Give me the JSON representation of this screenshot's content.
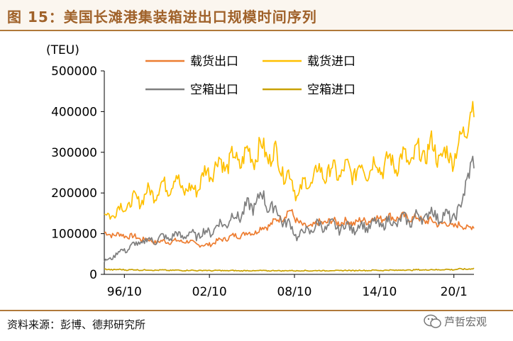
{
  "header": {
    "title": "图 15：美国长滩港集装箱进出口规模时间序列"
  },
  "footer": {
    "source": "资料来源：彭博、德邦研究所",
    "watermark": "芦哲宏观"
  },
  "colors": {
    "title": "#a0622a",
    "rule": "#b0793a",
    "loaded_export": "#ed7d31",
    "loaded_import": "#ffc000",
    "empty_export": "#7f7f7f",
    "empty_import": "#c9a100"
  },
  "chart_data": {
    "type": "line",
    "unit_label": "(TEU)",
    "yticks": [
      "500000",
      "400000",
      "300000",
      "200000",
      "100000",
      "0"
    ],
    "xticks": [
      "96/10",
      "02/10",
      "08/10",
      "14/10",
      "20/1"
    ],
    "ylim": [
      0,
      500000
    ],
    "x_start": "1995-05",
    "x_end": "2021-06",
    "legend_position": "top",
    "series": [
      {
        "name": "载货出口",
        "color": "#ed7d31",
        "anchors": [
          [
            "1995-05",
            100000
          ],
          [
            "1997-01",
            95000
          ],
          [
            "1999-01",
            80000
          ],
          [
            "2001-01",
            82000
          ],
          [
            "2002-06",
            70000
          ],
          [
            "2004-01",
            90000
          ],
          [
            "2006-01",
            105000
          ],
          [
            "2007-06",
            130000
          ],
          [
            "2008-06",
            155000
          ],
          [
            "2009-06",
            115000
          ],
          [
            "2011-01",
            130000
          ],
          [
            "2013-01",
            128000
          ],
          [
            "2015-01",
            140000
          ],
          [
            "2017-01",
            140000
          ],
          [
            "2019-01",
            125000
          ],
          [
            "2021-06",
            115000
          ]
        ]
      },
      {
        "name": "载货进口",
        "color": "#ffc000",
        "anchors": [
          [
            "1995-05",
            140000
          ],
          [
            "1996-06",
            160000
          ],
          [
            "1998-01",
            190000
          ],
          [
            "2000-06",
            230000
          ],
          [
            "2001-06",
            200000
          ],
          [
            "2003-01",
            265000
          ],
          [
            "2005-01",
            285000
          ],
          [
            "2006-06",
            305000
          ],
          [
            "2007-06",
            290000
          ],
          [
            "2009-01",
            200000
          ],
          [
            "2010-06",
            250000
          ],
          [
            "2013-01",
            255000
          ],
          [
            "2015-01",
            270000
          ],
          [
            "2017-01",
            285000
          ],
          [
            "2018-06",
            310000
          ],
          [
            "2019-06",
            285000
          ],
          [
            "2020-06",
            310000
          ],
          [
            "2021-02",
            410000
          ],
          [
            "2021-06",
            390000
          ]
        ]
      },
      {
        "name": "空箱出口",
        "color": "#7f7f7f",
        "anchors": [
          [
            "1995-05",
            30000
          ],
          [
            "1996-06",
            55000
          ],
          [
            "1998-01",
            80000
          ],
          [
            "2000-06",
            95000
          ],
          [
            "2002-06",
            100000
          ],
          [
            "2004-01",
            130000
          ],
          [
            "2005-06",
            160000
          ],
          [
            "2006-06",
            190000
          ],
          [
            "2007-06",
            155000
          ],
          [
            "2009-01",
            95000
          ],
          [
            "2010-06",
            120000
          ],
          [
            "2013-01",
            115000
          ],
          [
            "2015-01",
            125000
          ],
          [
            "2017-01",
            135000
          ],
          [
            "2018-06",
            150000
          ],
          [
            "2019-06",
            140000
          ],
          [
            "2020-06",
            150000
          ],
          [
            "2021-01",
            260000
          ],
          [
            "2021-06",
            260000
          ]
        ]
      },
      {
        "name": "空箱进口",
        "color": "#c9a100",
        "anchors": [
          [
            "1995-05",
            12000
          ],
          [
            "2000-01",
            10000
          ],
          [
            "2005-01",
            9000
          ],
          [
            "2010-01",
            9000
          ],
          [
            "2015-01",
            10000
          ],
          [
            "2020-01",
            12000
          ],
          [
            "2021-06",
            14000
          ]
        ]
      }
    ]
  }
}
